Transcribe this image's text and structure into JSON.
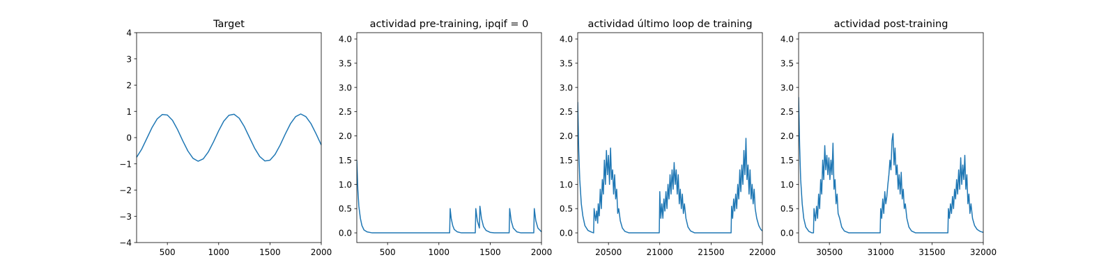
{
  "chart_data": [
    {
      "type": "line",
      "title": "Target",
      "color": "#1f77b4",
      "x": [
        200,
        250,
        300,
        350,
        400,
        450,
        500,
        550,
        600,
        650,
        700,
        750,
        800,
        850,
        900,
        950,
        1000,
        1050,
        1100,
        1150,
        1200,
        1250,
        1300,
        1350,
        1400,
        1450,
        1500,
        1550,
        1600,
        1650,
        1700,
        1750,
        1800,
        1850,
        1900,
        1950,
        2000
      ],
      "values": [
        -0.75,
        -0.44,
        -0.03,
        0.38,
        0.71,
        0.88,
        0.86,
        0.66,
        0.3,
        -0.12,
        -0.51,
        -0.79,
        -0.9,
        -0.81,
        -0.54,
        -0.16,
        0.26,
        0.63,
        0.85,
        0.89,
        0.74,
        0.42,
        0.01,
        -0.4,
        -0.72,
        -0.89,
        -0.86,
        -0.64,
        -0.28,
        0.14,
        0.53,
        0.8,
        0.9,
        0.8,
        0.53,
        0.14,
        -0.28
      ],
      "xlim": [
        200,
        2000
      ],
      "ylim": [
        -4,
        4
      ],
      "xticks": [
        500,
        1000,
        1500,
        2000
      ],
      "yticks": [
        {
          "value": -4,
          "label": "−4"
        },
        {
          "value": -3,
          "label": "−3"
        },
        {
          "value": -2,
          "label": "−2"
        },
        {
          "value": -1,
          "label": "−1"
        },
        0,
        1,
        2,
        3,
        4
      ]
    },
    {
      "type": "line",
      "title": "actividad pre-training, ipqif = 0",
      "color": "#1f77b4",
      "x": [
        200,
        210,
        220,
        235,
        250,
        270,
        300,
        350,
        1105,
        1110,
        1120,
        1135,
        1150,
        1180,
        1220,
        1355,
        1360,
        1375,
        1395,
        1400,
        1415,
        1435,
        1460,
        1500,
        1540,
        1685,
        1690,
        1705,
        1725,
        1760,
        1800,
        1925,
        1930,
        1945,
        1965,
        2000
      ],
      "values": [
        1.5,
        0.9,
        0.55,
        0.3,
        0.15,
        0.06,
        0.02,
        0,
        0,
        0.5,
        0.3,
        0.15,
        0.07,
        0.02,
        0,
        0,
        0.5,
        0.25,
        0.1,
        0.55,
        0.3,
        0.13,
        0.05,
        0.01,
        0,
        0,
        0.5,
        0.25,
        0.1,
        0.02,
        0,
        0,
        0.5,
        0.25,
        0.1,
        0.02
      ],
      "xlim": [
        200,
        2000
      ],
      "ylim": [
        -0.2,
        4.13
      ],
      "xticks": [
        500,
        1000,
        1500,
        2000
      ],
      "yticks": [
        {
          "value": 0,
          "label": "0.0"
        },
        0.5,
        {
          "value": 1,
          "label": "1.0"
        },
        1.5,
        {
          "value": 2,
          "label": "2.0"
        },
        2.5,
        {
          "value": 3,
          "label": "3.0"
        },
        3.5,
        {
          "value": 4,
          "label": "4.0"
        }
      ]
    },
    {
      "type": "line",
      "title": "actividad último loop de training",
      "color": "#1f77b4",
      "x": [
        20200,
        20210,
        20220,
        20235,
        20250,
        20270,
        20300,
        20330,
        20355,
        20360,
        20375,
        20385,
        20395,
        20400,
        20410,
        20420,
        20430,
        20440,
        20450,
        20460,
        20470,
        20480,
        20490,
        20500,
        20510,
        20520,
        20530,
        20540,
        20550,
        20560,
        20570,
        20580,
        20590,
        20600,
        20615,
        20635,
        20660,
        20700,
        20995,
        21000,
        21010,
        21020,
        21030,
        21040,
        21050,
        21060,
        21070,
        21080,
        21090,
        21100,
        21110,
        21120,
        21130,
        21140,
        21150,
        21160,
        21170,
        21180,
        21190,
        21200,
        21210,
        21220,
        21230,
        21240,
        21255,
        21275,
        21300,
        21340,
        21695,
        21700,
        21710,
        21720,
        21730,
        21740,
        21750,
        21760,
        21770,
        21780,
        21790,
        21800,
        21810,
        21820,
        21830,
        21840,
        21850,
        21860,
        21870,
        21880,
        21890,
        21900,
        21910,
        21920,
        21930,
        21945,
        21965,
        21985,
        22000
      ],
      "values": [
        2.7,
        1.7,
        1.1,
        0.6,
        0.35,
        0.15,
        0.05,
        0.02,
        0,
        0.5,
        0.25,
        0.45,
        0.2,
        0.6,
        0.35,
        0.9,
        0.5,
        1.1,
        0.8,
        1.5,
        1.0,
        1.7,
        1.2,
        1.6,
        1.0,
        1.75,
        1.1,
        1.3,
        0.8,
        1.2,
        0.7,
        0.9,
        0.4,
        0.5,
        0.25,
        0.1,
        0.03,
        0,
        0,
        0.85,
        0.3,
        0.6,
        0.3,
        0.7,
        0.45,
        0.85,
        0.5,
        1.0,
        0.7,
        1.2,
        0.8,
        1.3,
        0.9,
        1.45,
        1.0,
        1.3,
        0.8,
        1.2,
        0.6,
        0.9,
        0.5,
        0.8,
        0.4,
        0.6,
        0.3,
        0.12,
        0.04,
        0,
        0,
        0.55,
        0.3,
        0.7,
        0.45,
        0.8,
        0.5,
        1.0,
        0.7,
        1.3,
        0.85,
        1.4,
        1.0,
        1.7,
        1.2,
        1.95,
        1.1,
        1.4,
        0.8,
        1.3,
        0.7,
        1.0,
        0.6,
        0.9,
        0.5,
        0.3,
        0.15,
        0.07,
        0.04
      ],
      "xlim": [
        20200,
        22000
      ],
      "ylim": [
        -0.2,
        4.13
      ],
      "xticks": [
        20500,
        21000,
        21500,
        22000
      ],
      "yticks": [
        {
          "value": 0,
          "label": "0.0"
        },
        0.5,
        {
          "value": 1,
          "label": "1.0"
        },
        1.5,
        {
          "value": 2,
          "label": "2.0"
        },
        2.5,
        {
          "value": 3,
          "label": "3.0"
        },
        3.5,
        {
          "value": 4,
          "label": "4.0"
        }
      ]
    },
    {
      "type": "line",
      "title": "actividad post-training",
      "color": "#1f77b4",
      "x": [
        30200,
        30210,
        30220,
        30235,
        30250,
        30270,
        30300,
        30330,
        30345,
        30350,
        30365,
        30375,
        30385,
        30395,
        30405,
        30415,
        30425,
        30435,
        30445,
        30455,
        30465,
        30475,
        30485,
        30495,
        30505,
        30515,
        30525,
        30535,
        30545,
        30555,
        30565,
        30575,
        30585,
        30600,
        30620,
        30645,
        30690,
        30995,
        31000,
        31010,
        31020,
        31030,
        31040,
        31050,
        31060,
        31070,
        31080,
        31090,
        31100,
        31110,
        31120,
        31130,
        31140,
        31150,
        31160,
        31170,
        31180,
        31190,
        31200,
        31210,
        31220,
        31230,
        31240,
        31255,
        31275,
        31300,
        31340,
        31655,
        31660,
        31670,
        31680,
        31690,
        31700,
        31710,
        31720,
        31730,
        31740,
        31750,
        31760,
        31770,
        31780,
        31790,
        31800,
        31810,
        31820,
        31830,
        31840,
        31850,
        31860,
        31870,
        31880,
        31895,
        31915,
        31940,
        31970,
        32000
      ],
      "values": [
        2.8,
        1.8,
        1.1,
        0.6,
        0.3,
        0.12,
        0.03,
        0,
        0,
        0.5,
        0.25,
        0.55,
        0.3,
        0.8,
        0.5,
        1.1,
        0.8,
        1.5,
        1.1,
        1.8,
        1.3,
        1.6,
        1.2,
        1.55,
        1.1,
        1.5,
        1.2,
        1.85,
        0.9,
        1.1,
        0.6,
        0.8,
        0.4,
        0.3,
        0.12,
        0.04,
        0,
        0,
        0.5,
        0.3,
        0.7,
        0.4,
        0.85,
        0.6,
        0.75,
        1.0,
        1.2,
        1.5,
        1.3,
        1.9,
        2.05,
        1.4,
        1.75,
        1.2,
        1.4,
        0.9,
        1.2,
        0.8,
        1.25,
        0.7,
        0.9,
        0.5,
        0.6,
        0.3,
        0.12,
        0.04,
        0,
        0,
        0.5,
        0.3,
        0.6,
        0.4,
        0.75,
        0.5,
        0.9,
        0.7,
        1.1,
        0.8,
        1.3,
        0.9,
        1.55,
        1.0,
        1.4,
        1.1,
        1.6,
        0.9,
        1.2,
        0.6,
        0.8,
        0.4,
        0.6,
        0.3,
        0.15,
        0.07,
        0.03,
        0.01
      ],
      "xlim": [
        30200,
        32000
      ],
      "ylim": [
        -0.2,
        4.13
      ],
      "xticks": [
        30500,
        31000,
        31500,
        32000
      ],
      "yticks": [
        {
          "value": 0,
          "label": "0.0"
        },
        0.5,
        {
          "value": 1,
          "label": "1.0"
        },
        1.5,
        {
          "value": 2,
          "label": "2.0"
        },
        2.5,
        {
          "value": 3,
          "label": "3.0"
        },
        3.5,
        {
          "value": 4,
          "label": "4.0"
        }
      ]
    }
  ]
}
